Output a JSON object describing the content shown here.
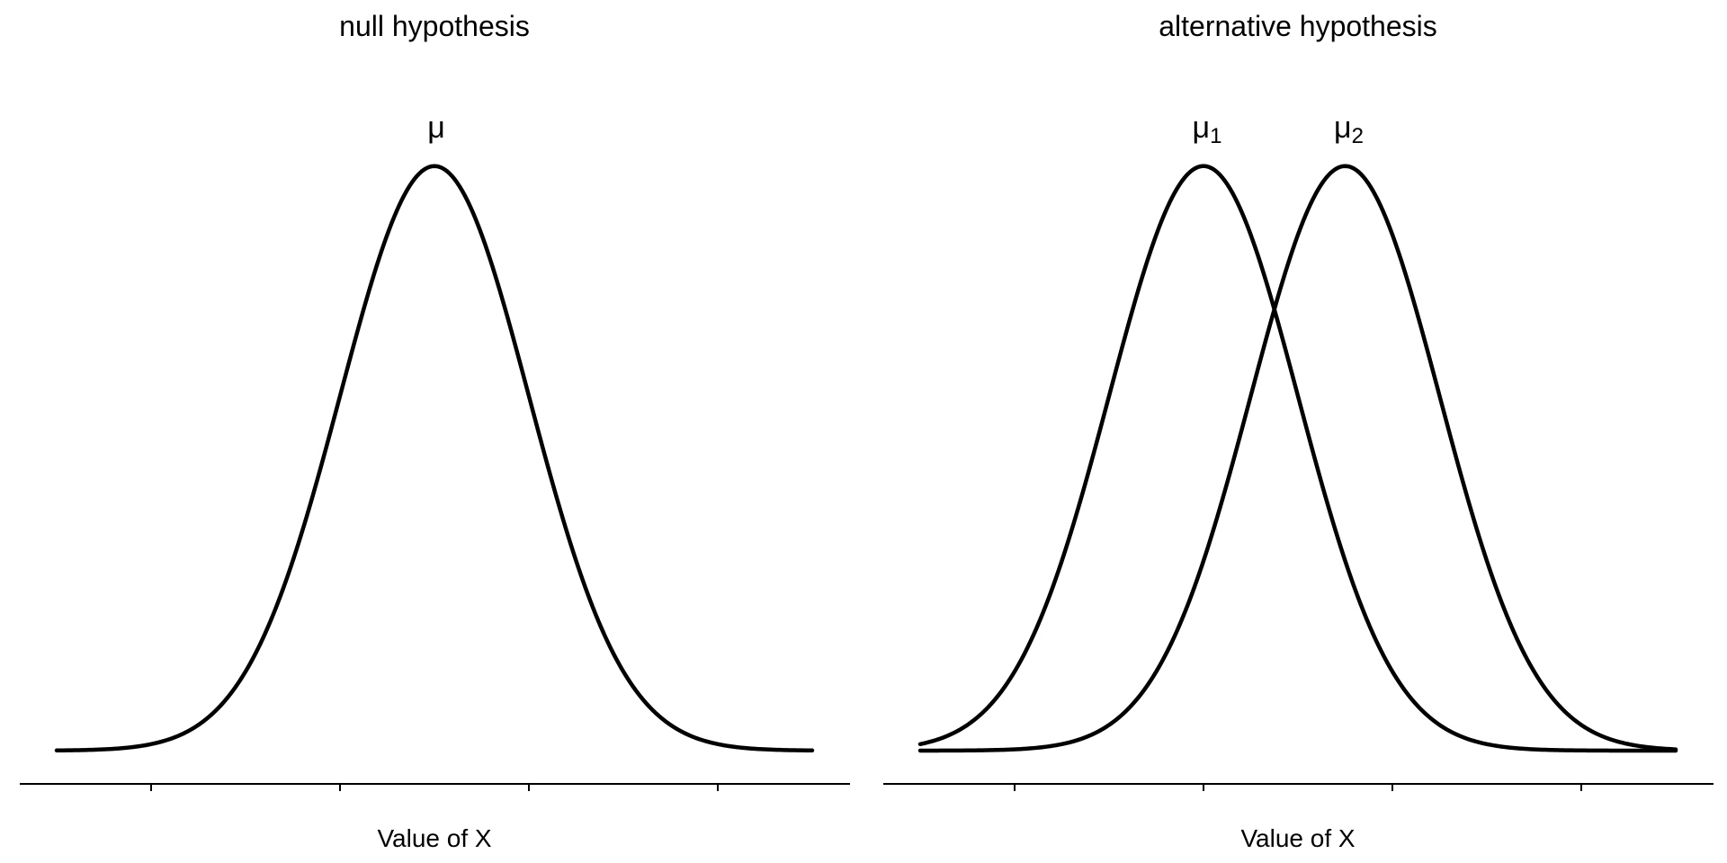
{
  "chart_data": [
    {
      "type": "line",
      "title": "null hypothesis",
      "xlabel": "Value of X",
      "ylabel": "",
      "xlim": [
        -4,
        4
      ],
      "ylim": [
        0,
        0.4
      ],
      "x_ticks": [
        -3,
        -1,
        1,
        3
      ],
      "x_tick_labels": [],
      "grid": false,
      "series": [
        {
          "mean": 0,
          "sd": 1,
          "peak_label": "μ",
          "peak_label_sub": ""
        }
      ]
    },
    {
      "type": "line",
      "title": "alternative hypothesis",
      "xlabel": "Value of X",
      "ylabel": "",
      "xlim": [
        -4,
        4
      ],
      "ylim": [
        0,
        0.4
      ],
      "x_ticks": [
        -3,
        -1,
        1,
        3
      ],
      "x_tick_labels": [],
      "grid": false,
      "series": [
        {
          "mean": -1,
          "sd": 1,
          "peak_label": "μ",
          "peak_label_sub": "1"
        },
        {
          "mean": 0.5,
          "sd": 1,
          "peak_label": "μ",
          "peak_label_sub": "2"
        }
      ]
    }
  ]
}
